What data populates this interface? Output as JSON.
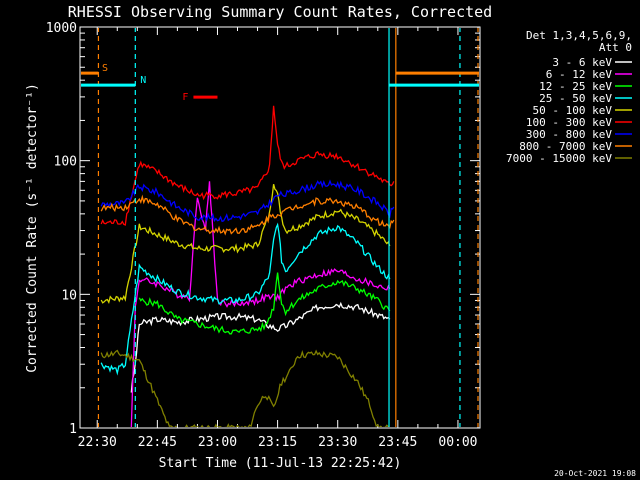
{
  "chart_data": {
    "type": "line",
    "title": "RHESSI Observing Summary Count Rates, Corrected",
    "xlabel": "Start Time (11-Jul-13 22:25:42)",
    "ylabel": "Corrected Count Rate (s⁻¹ detector⁻¹)",
    "y_scale": "log",
    "ylim": [
      1,
      1000
    ],
    "xlim_minutes_after_2230": [
      -4.3,
      95.5
    ],
    "x_ticks": [
      {
        "label": "22:30",
        "minutes": 0
      },
      {
        "label": "22:45",
        "minutes": 15
      },
      {
        "label": "23:00",
        "minutes": 30
      },
      {
        "label": "23:15",
        "minutes": 45
      },
      {
        "label": "23:30",
        "minutes": 60
      },
      {
        "label": "23:45",
        "minutes": 75
      },
      {
        "label": "00:00",
        "minutes": 90
      }
    ],
    "y_ticks": [
      {
        "label": "1",
        "value": 1
      },
      {
        "label": "10",
        "value": 10
      },
      {
        "label": "100",
        "value": 100
      },
      {
        "label": "1000",
        "value": 1000
      }
    ],
    "legend": {
      "placement": "right",
      "header": [
        "Det 1,3,4,5,6,9,",
        "Att 0"
      ],
      "entries": [
        {
          "label": "3 - 6 keV",
          "color": "#ffffff"
        },
        {
          "label": "6 - 12 keV",
          "color": "#ff00ff"
        },
        {
          "label": "12 - 25 keV",
          "color": "#00ff00"
        },
        {
          "label": "25 - 50 keV",
          "color": "#00ffff"
        },
        {
          "label": "50 - 100 keV",
          "color": "#d4d400"
        },
        {
          "label": "100 - 300 keV",
          "color": "#ff0000"
        },
        {
          "label": "300 - 800 keV",
          "color": "#0000ff"
        },
        {
          "label": "800 - 7000 keV",
          "color": "#ff7f00"
        },
        {
          "label": "7000 - 15000 keV",
          "color": "#808000"
        }
      ]
    },
    "series": [
      {
        "name": "3 - 6 keV",
        "color": "#ffffff",
        "x": [
          8.5,
          9.5,
          10.5,
          15,
          20,
          25,
          30,
          35,
          40,
          42,
          45,
          47,
          50,
          55,
          60,
          65,
          70,
          73
        ],
        "y": [
          1.9,
          3,
          6,
          6.5,
          6.2,
          6.5,
          6.8,
          6.8,
          6.5,
          6.0,
          5.5,
          5.8,
          6.5,
          8.0,
          8.5,
          8.0,
          7.0,
          6.5
        ]
      },
      {
        "name": "6 - 12 keV",
        "color": "#ff00ff",
        "x": [
          8.5,
          9.5,
          10.5,
          15,
          20,
          23,
          25,
          27,
          28,
          29,
          30,
          32,
          35,
          40,
          42,
          45,
          47,
          50,
          55,
          60,
          65,
          70,
          73
        ],
        "y": [
          1,
          8,
          13,
          12,
          10,
          9.5,
          55,
          30,
          70,
          25,
          9,
          8.5,
          8.5,
          9,
          9.5,
          9.5,
          11,
          12.5,
          14,
          15,
          13,
          11.5,
          11
        ]
      },
      {
        "name": "12 - 25 keV",
        "color": "#00ff00",
        "x": [
          10.5,
          15,
          20,
          25,
          30,
          35,
          40,
          42,
          44,
          45,
          46,
          47,
          50,
          55,
          60,
          65,
          70,
          73
        ],
        "y": [
          9,
          8.5,
          6.5,
          6.0,
          5.5,
          5.2,
          5.5,
          5.8,
          8.0,
          15,
          8.5,
          7.5,
          9,
          11,
          12.5,
          11,
          9,
          7.5
        ]
      },
      {
        "name": "25 - 50 keV",
        "color": "#00ffff",
        "x": [
          1,
          5,
          7,
          10.5,
          15,
          20,
          25,
          30,
          35,
          40,
          43,
          44,
          45,
          46,
          47,
          50,
          55,
          60,
          65,
          70,
          73
        ],
        "y": [
          3,
          2.7,
          3,
          16,
          13,
          10.5,
          9.5,
          9,
          9,
          10,
          14,
          25,
          35,
          18,
          15,
          20,
          28,
          32,
          24,
          16,
          13
        ]
      },
      {
        "name": "50 - 100 keV",
        "color": "#d4d400",
        "x": [
          1,
          7,
          10.5,
          15,
          20,
          25,
          30,
          35,
          40,
          43,
          44,
          45,
          46,
          47,
          50,
          55,
          60,
          65,
          70,
          73
        ],
        "y": [
          9,
          9.5,
          32,
          28,
          24,
          22,
          22,
          22,
          23.5,
          40,
          70,
          55,
          38,
          30,
          32,
          38,
          42,
          36,
          28,
          23
        ]
      },
      {
        "name": "100 - 300 keV",
        "color": "#ff0000",
        "x": [
          1,
          7,
          10.5,
          15,
          20,
          25,
          30,
          35,
          40,
          43,
          44,
          45,
          46,
          47,
          50,
          55,
          60,
          65,
          70,
          73,
          74
        ],
        "y": [
          34,
          35,
          95,
          82,
          65,
          55,
          55,
          57,
          62,
          90,
          260,
          130,
          95,
          90,
          100,
          112,
          108,
          90,
          75,
          65,
          70
        ]
      },
      {
        "name": "300 - 800 keV",
        "color": "#0000ff",
        "x": [
          1,
          7,
          10.5,
          15,
          20,
          25,
          30,
          35,
          40,
          43,
          45,
          47,
          50,
          55,
          60,
          65,
          70,
          73,
          74
        ],
        "y": [
          47,
          48,
          64,
          58,
          45,
          38,
          37,
          38,
          41,
          48,
          55,
          56,
          60,
          66,
          67,
          60,
          48,
          40,
          45
        ]
      },
      {
        "name": "800 - 7000 keV",
        "color": "#ff7f00",
        "x": [
          1,
          7,
          10.5,
          15,
          20,
          25,
          30,
          35,
          40,
          43,
          45,
          47,
          50,
          55,
          60,
          65,
          70,
          73,
          74
        ],
        "y": [
          44,
          45,
          52,
          47,
          36,
          31,
          30,
          30,
          32,
          38,
          40,
          42,
          46,
          50,
          50,
          44,
          35,
          32,
          36
        ]
      },
      {
        "name": "7000 - 15000 keV",
        "color": "#808000",
        "x": [
          1,
          5,
          7,
          10.5,
          13,
          15,
          18,
          20,
          25,
          30,
          35,
          38,
          40,
          42,
          44,
          46,
          48,
          50,
          55,
          60,
          65,
          68,
          70,
          73
        ],
        "y": [
          3.5,
          3.6,
          3.5,
          3.2,
          2.2,
          1.6,
          1,
          1,
          1,
          1,
          1,
          1,
          1.5,
          1.8,
          1.4,
          2.2,
          2.6,
          3.5,
          3.6,
          3.4,
          2.2,
          1.5,
          1,
          1
        ]
      }
    ],
    "annotations": [
      {
        "label": "S",
        "color": "#ff7f00",
        "x_start_minutes": -4.3,
        "x_end_minutes": 0.3,
        "level": 0.9
      },
      {
        "label": "S",
        "color": "#ff7f00",
        "x_start_minutes": 74.5,
        "x_end_minutes": 95.5,
        "level": 0.9
      },
      {
        "label": "N",
        "color": "#00ffff",
        "x_start_minutes": -4.3,
        "x_end_minutes": 9.5,
        "level": 0.87
      },
      {
        "label": "N",
        "color": "#00ffff",
        "x_start_minutes": 72.8,
        "x_end_minutes": 95.5,
        "level": 0.87
      },
      {
        "label": "F",
        "color": "#ff0000",
        "x_start_minutes": 24,
        "x_end_minutes": 30,
        "level": 0.84
      }
    ],
    "vertical_markers": [
      {
        "minutes": 0.3,
        "color": "#ff7f00",
        "style": "dashed"
      },
      {
        "minutes": 9.5,
        "color": "#00ffff",
        "style": "dashed"
      },
      {
        "minutes": 72.8,
        "color": "#00ffff",
        "style": "solid"
      },
      {
        "minutes": 74.5,
        "color": "#ff7f00",
        "style": "solid"
      },
      {
        "minutes": 90.5,
        "color": "#00ffff",
        "style": "dashed"
      },
      {
        "minutes": 95,
        "color": "#ff7f00",
        "style": "dashed"
      }
    ],
    "footer": "20-Oct-2021 19:08"
  }
}
